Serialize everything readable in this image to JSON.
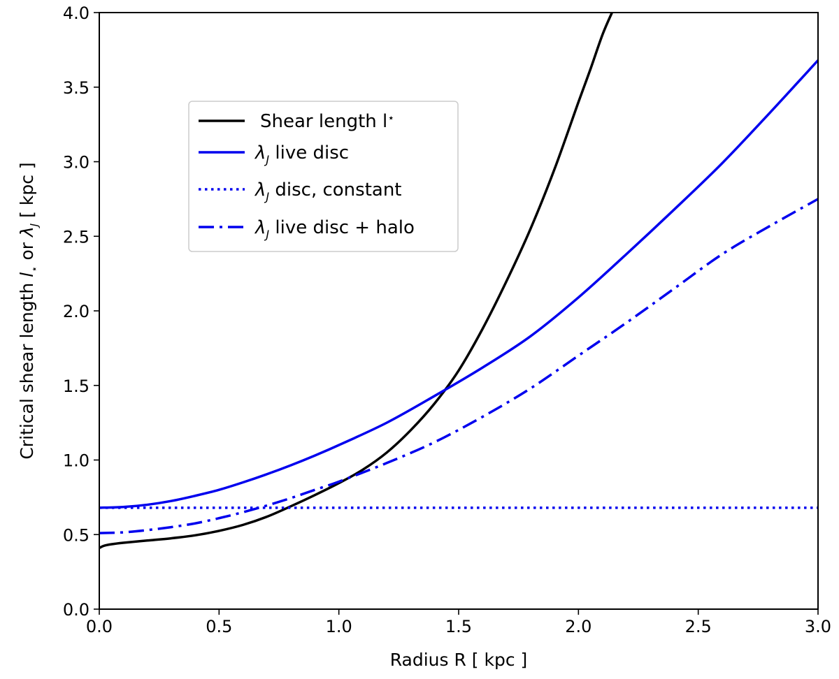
{
  "chart_data": {
    "type": "line",
    "xlabel": "Radius R [ kpc ]",
    "ylabel_parts": [
      "Critical shear length ",
      "l",
      "⋆",
      " or ",
      "λ",
      "J",
      "  [ kpc ]"
    ],
    "xlim": [
      0.0,
      3.0
    ],
    "ylim": [
      0.0,
      4.0
    ],
    "xticks": [
      0.0,
      0.5,
      1.0,
      1.5,
      2.0,
      2.5,
      3.0
    ],
    "xtick_labels": [
      "0.0",
      "0.5",
      "1.0",
      "1.5",
      "2.0",
      "2.5",
      "3.0"
    ],
    "yticks": [
      0.0,
      0.5,
      1.0,
      1.5,
      2.0,
      2.5,
      3.0,
      3.5,
      4.0
    ],
    "ytick_labels": [
      "0.0",
      "0.5",
      "1.0",
      "1.5",
      "2.0",
      "2.5",
      "3.0",
      "3.5",
      "4.0"
    ],
    "grid": false,
    "legend_position": "upper-left",
    "series": [
      {
        "name": "Shear length l⋆",
        "legend_main": "Shear length l",
        "legend_sub": "⋆",
        "color": "#000000",
        "style": "solid",
        "x": [
          0.0,
          0.02,
          0.05,
          0.1,
          0.2,
          0.3,
          0.4,
          0.5,
          0.6,
          0.7,
          0.8,
          0.9,
          1.0,
          1.1,
          1.2,
          1.3,
          1.4,
          1.5,
          1.6,
          1.7,
          1.8,
          1.9,
          2.0,
          2.05,
          2.1,
          2.14
        ],
        "y": [
          0.41,
          0.425,
          0.435,
          0.445,
          0.46,
          0.475,
          0.495,
          0.525,
          0.565,
          0.62,
          0.69,
          0.765,
          0.845,
          0.935,
          1.05,
          1.2,
          1.38,
          1.6,
          1.88,
          2.2,
          2.55,
          2.95,
          3.4,
          3.62,
          3.85,
          4.0
        ]
      },
      {
        "name": "λJ live disc",
        "legend_greek": "λ",
        "legend_sub": "J",
        "legend_rest": " live disc",
        "color": "#0000ee",
        "style": "solid",
        "x": [
          0.0,
          0.1,
          0.2,
          0.3,
          0.4,
          0.5,
          0.6,
          0.7,
          0.8,
          0.9,
          1.0,
          1.2,
          1.4,
          1.6,
          1.8,
          2.0,
          2.2,
          2.4,
          2.6,
          2.8,
          3.0
        ],
        "y": [
          0.68,
          0.685,
          0.7,
          0.725,
          0.76,
          0.8,
          0.85,
          0.905,
          0.965,
          1.03,
          1.1,
          1.25,
          1.43,
          1.62,
          1.83,
          2.09,
          2.38,
          2.68,
          2.99,
          3.33,
          3.68
        ]
      },
      {
        "name": "λJ disc, constant",
        "legend_greek": "λ",
        "legend_sub": "J",
        "legend_rest": " disc, constant",
        "color": "#0000ee",
        "style": "dotted",
        "x": [
          0.0,
          3.0
        ],
        "y": [
          0.68,
          0.68
        ]
      },
      {
        "name": "λJ live disc + halo",
        "legend_greek": "λ",
        "legend_sub": "J",
        "legend_rest": " live disc + halo",
        "color": "#0000ee",
        "style": "dashdot",
        "x": [
          0.0,
          0.1,
          0.2,
          0.3,
          0.4,
          0.5,
          0.6,
          0.7,
          0.8,
          0.9,
          1.0,
          1.2,
          1.4,
          1.6,
          1.8,
          2.0,
          2.2,
          2.4,
          2.6,
          2.8,
          3.0
        ],
        "y": [
          0.51,
          0.515,
          0.53,
          0.55,
          0.575,
          0.61,
          0.65,
          0.695,
          0.745,
          0.8,
          0.855,
          0.98,
          1.12,
          1.29,
          1.48,
          1.7,
          1.92,
          2.15,
          2.38,
          2.57,
          2.75
        ]
      }
    ]
  }
}
